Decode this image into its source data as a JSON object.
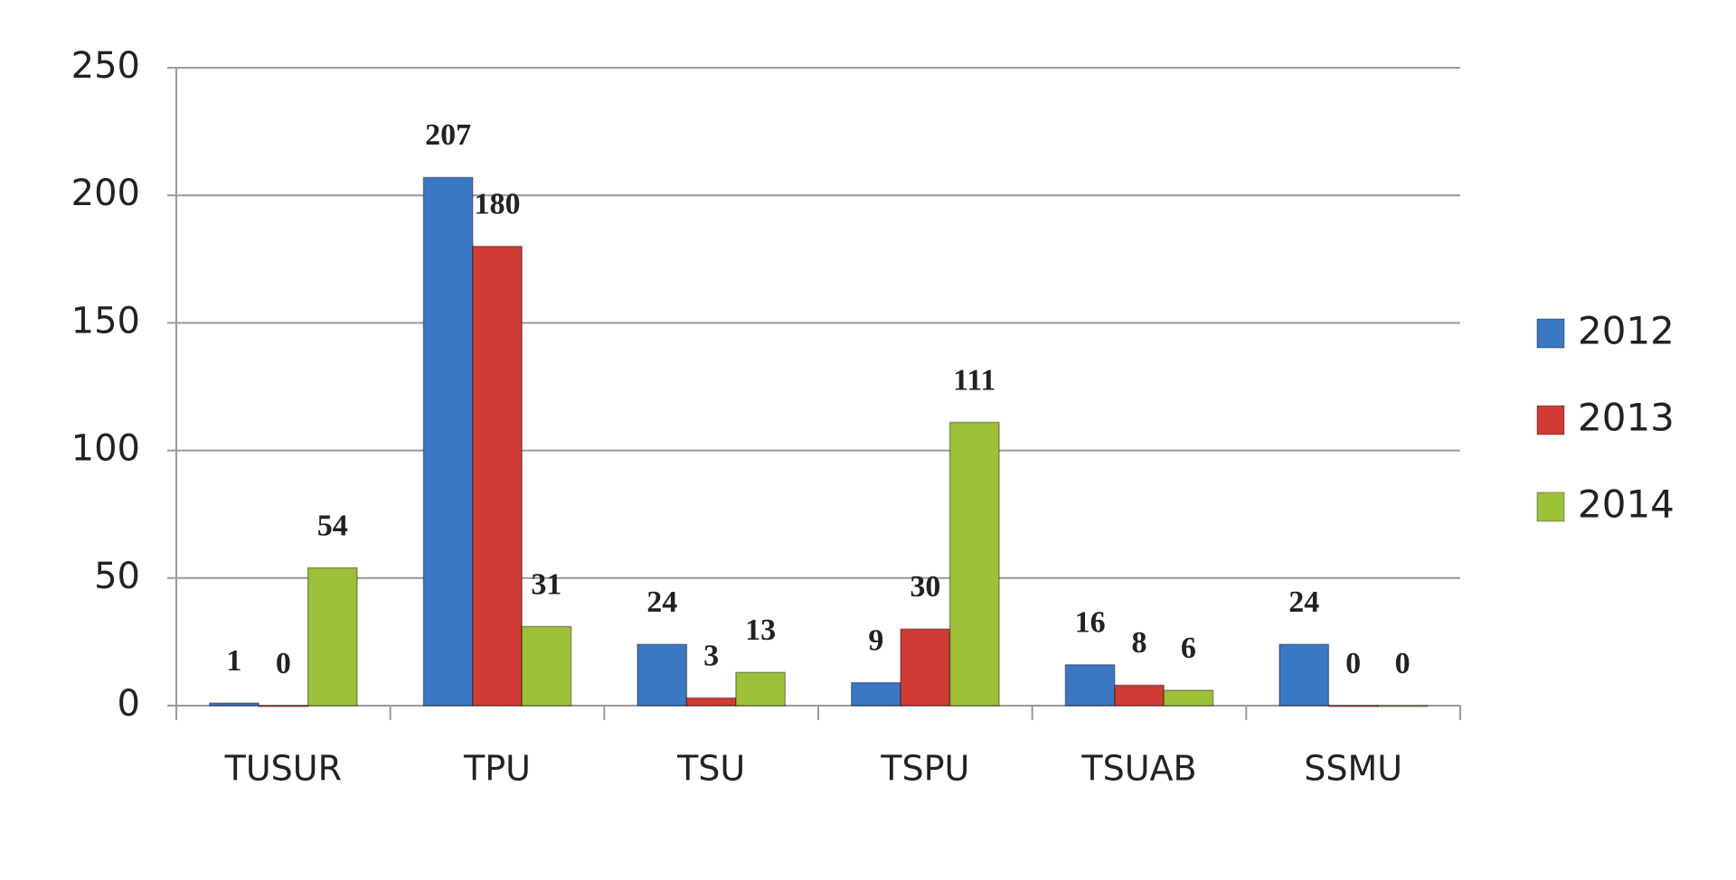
{
  "chart_data": {
    "type": "bar",
    "categories": [
      "TUSUR",
      "TPU",
      "TSU",
      "TSPU",
      "TSUAB",
      "SSMU"
    ],
    "series": [
      {
        "name": "2012",
        "color": "#3a78c4",
        "values": [
          1,
          207,
          24,
          9,
          16,
          24
        ]
      },
      {
        "name": "2013",
        "color": "#d23a34",
        "values": [
          0,
          180,
          3,
          30,
          8,
          0
        ]
      },
      {
        "name": "2014",
        "color": "#9cc23a",
        "values": [
          54,
          31,
          13,
          111,
          6,
          0
        ]
      }
    ],
    "ylim": [
      0,
      250
    ],
    "yticks": [
      0,
      50,
      100,
      150,
      200,
      250
    ],
    "grid": true,
    "legend": "right"
  }
}
